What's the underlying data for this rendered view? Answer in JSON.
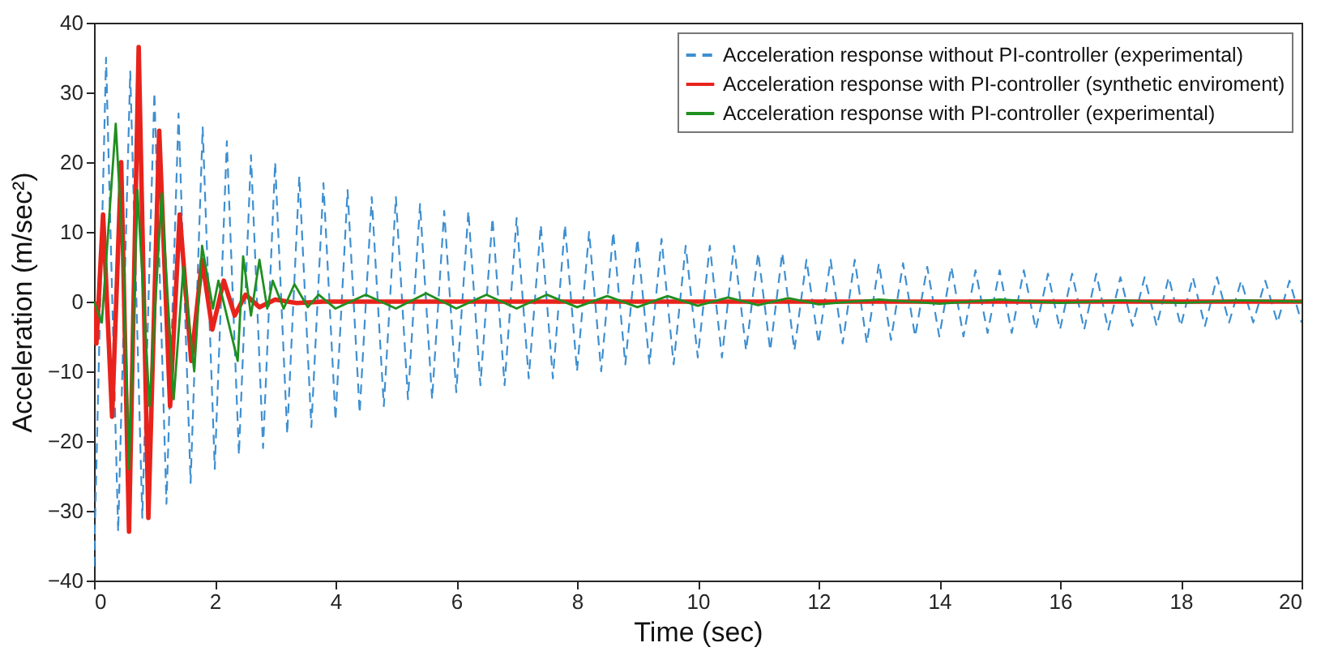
{
  "chart_data": {
    "type": "line",
    "xlabel": "Time (sec)",
    "ylabel": "Acceleration (m/sec²)",
    "xlim": [
      0,
      20
    ],
    "ylim": [
      -40,
      40
    ],
    "xticks": [
      0,
      2,
      4,
      6,
      8,
      10,
      12,
      14,
      16,
      18,
      20
    ],
    "yticks": [
      -40,
      -30,
      -20,
      -10,
      0,
      10,
      20,
      30,
      40
    ],
    "grid": false,
    "legend": "top right",
    "series": [
      {
        "name": "Acceleration response without PI-controller (experimental)",
        "color": "#3d8fd1",
        "line_style": "dashed",
        "x": [
          0,
          0.2,
          0.4,
          0.6,
          0.8,
          1.0,
          1.2,
          1.4,
          1.6,
          1.8,
          2.0,
          2.2,
          2.4,
          2.6,
          2.8,
          3.0,
          3.2,
          3.4,
          3.6,
          3.8,
          4.0,
          4.2,
          4.4,
          4.6,
          4.8,
          5.0,
          5.2,
          5.4,
          5.6,
          5.8,
          6.0,
          6.2,
          6.4,
          6.6,
          6.8,
          7.0,
          7.2,
          7.4,
          7.6,
          7.8,
          8.0,
          8.2,
          8.4,
          8.6,
          8.8,
          9.0,
          9.2,
          9.4,
          9.6,
          9.8,
          10.0,
          10.2,
          10.4,
          10.6,
          10.8,
          11.0,
          11.2,
          11.4,
          11.6,
          11.8,
          12.0,
          12.2,
          12.4,
          12.6,
          12.8,
          13.0,
          13.2,
          13.4,
          13.6,
          13.8,
          14.0,
          14.2,
          14.4,
          14.6,
          14.8,
          15.0,
          15.2,
          15.4,
          15.6,
          15.8,
          16.0,
          16.2,
          16.4,
          16.6,
          16.8,
          17.0,
          17.2,
          17.4,
          17.6,
          17.8,
          18.0,
          18.2,
          18.4,
          18.6,
          18.8,
          19.0,
          19.2,
          19.4,
          19.6,
          19.8,
          20.0
        ],
        "values": [
          -38,
          35,
          -33,
          33,
          -31,
          30,
          -29,
          27,
          -26,
          25,
          -24,
          23,
          -22,
          21,
          -21,
          20,
          -19,
          18,
          -18,
          17,
          -17,
          16,
          -16,
          15,
          -15,
          15,
          -14,
          14,
          -14,
          13,
          -13,
          13,
          -12,
          12,
          -12,
          12,
          -11,
          11,
          -11,
          11,
          -10,
          10,
          -10,
          10,
          -9,
          9,
          -9,
          9,
          -9,
          8,
          -8,
          8,
          -8,
          8,
          -7,
          7,
          -7,
          7,
          -7,
          6,
          -6,
          6,
          -6,
          6,
          -6,
          5.5,
          -5.5,
          5.5,
          -5,
          5,
          -5,
          5,
          -5,
          4.5,
          -4.5,
          4.5,
          -4.5,
          4.5,
          -4,
          4,
          -4,
          4,
          -4,
          4,
          -4,
          3.5,
          -3.5,
          3.5,
          -3.5,
          3.5,
          -3.5,
          3.5,
          -3.5,
          3.5,
          -3,
          3,
          -3,
          3,
          -3,
          3,
          -3
        ]
      },
      {
        "name": "Acceleration response with PI-controller (synthetic enviroment)",
        "color": "#e8231c",
        "line_style": "solid",
        "x": [
          0,
          0.04,
          0.15,
          0.3,
          0.45,
          0.58,
          0.74,
          0.9,
          1.08,
          1.26,
          1.42,
          1.61,
          1.79,
          1.96,
          2.15,
          2.33,
          2.51,
          2.74,
          3.0,
          3.36,
          3.8,
          20
        ],
        "values": [
          0,
          -6,
          12.5,
          -16.5,
          20,
          -33,
          36.5,
          -31,
          24.5,
          -15,
          12.5,
          -8.5,
          6,
          -4,
          3,
          -2,
          1,
          -0.8,
          0.3,
          -0.2,
          0,
          0
        ]
      },
      {
        "name": "Acceleration response with PI-controller (experimental)",
        "color": "#1f8f1f",
        "line_style": "solid",
        "x": [
          0,
          0.13,
          0.36,
          0.49,
          0.58,
          0.72,
          0.92,
          1.12,
          1.32,
          1.48,
          1.66,
          1.79,
          1.97,
          2.06,
          2.38,
          2.47,
          2.6,
          2.74,
          2.87,
          2.96,
          3.14,
          3.32,
          3.54,
          3.72,
          4.0,
          4.5,
          5.0,
          5.5,
          6.0,
          6.5,
          7.0,
          7.5,
          8.0,
          8.5,
          9.0,
          9.5,
          10.0,
          10.5,
          11.0,
          11.5,
          12.0,
          13.0,
          14.0,
          15.0,
          16.0,
          17.0,
          18.0,
          19.0,
          20.0
        ],
        "values": [
          0,
          -3,
          25.5,
          5,
          -24,
          16,
          -15,
          15.5,
          -14,
          5,
          -10,
          8,
          -1,
          3,
          -8.5,
          6.5,
          -2,
          6,
          -1,
          3,
          -1,
          2.5,
          -0.8,
          1,
          -1,
          1,
          -1,
          1.2,
          -1,
          1,
          -1,
          1,
          -0.8,
          0.8,
          -0.8,
          0.8,
          -0.6,
          0.6,
          -0.5,
          0.5,
          -0.4,
          0.3,
          -0.3,
          0.3,
          -0.2,
          0.2,
          -0.2,
          0.2,
          0
        ]
      }
    ]
  }
}
